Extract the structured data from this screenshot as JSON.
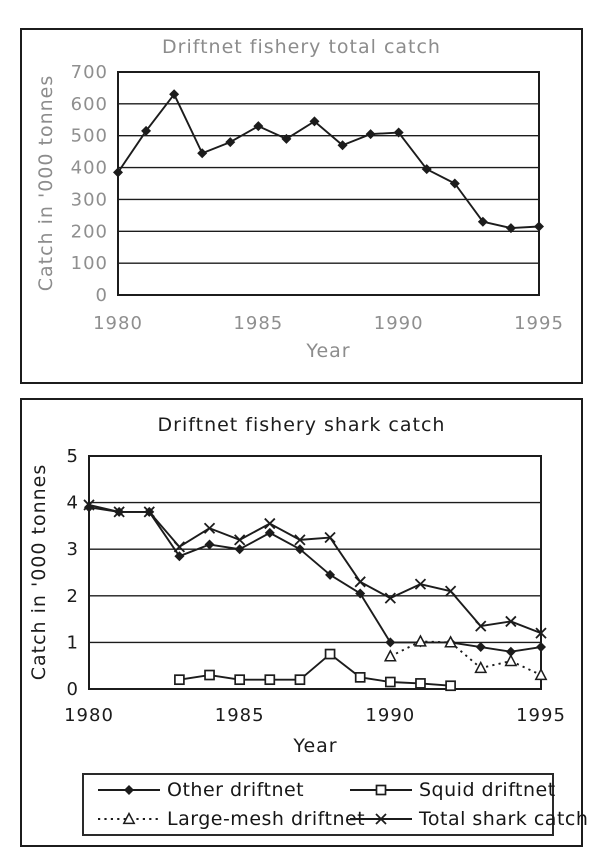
{
  "colors": {
    "background": "#ffffff",
    "ink": "#1c1c1c",
    "muted_text": "#8c8c8c"
  },
  "chart_data": [
    {
      "type": "line",
      "title": "Driftnet fishery total catch",
      "xlabel": "Year",
      "ylabel": "Catch in '000 tonnes",
      "x": [
        1980,
        1981,
        1982,
        1983,
        1984,
        1985,
        1986,
        1987,
        1988,
        1989,
        1990,
        1991,
        1992,
        1993,
        1994,
        1995
      ],
      "values": [
        385,
        515,
        630,
        445,
        480,
        530,
        490,
        545,
        470,
        505,
        510,
        395,
        350,
        230,
        210,
        215
      ],
      "marker": "diamond-filled",
      "line": "solid",
      "xticks": [
        1980,
        1985,
        1990,
        1995
      ],
      "yticks": [
        0,
        100,
        200,
        300,
        400,
        500,
        600,
        700
      ],
      "xlim": [
        1980,
        1995
      ],
      "ylim": [
        0,
        700
      ],
      "grid": true,
      "legend_position": "none"
    },
    {
      "type": "line",
      "title": "Driftnet fishery shark catch",
      "xlabel": "Year",
      "ylabel": "Catch in '000 tonnes",
      "x": [
        1980,
        1981,
        1982,
        1983,
        1984,
        1985,
        1986,
        1987,
        1988,
        1989,
        1990,
        1991,
        1992,
        1993,
        1994,
        1995
      ],
      "series": [
        {
          "name": "Other driftnet",
          "marker": "diamond-filled",
          "line": "solid",
          "values": [
            3.9,
            3.8,
            3.8,
            2.85,
            3.1,
            3.0,
            3.35,
            3.0,
            2.45,
            2.05,
            1.0,
            1.0,
            1.0,
            0.9,
            0.8,
            0.9
          ]
        },
        {
          "name": "Squid driftnet",
          "marker": "square-open",
          "line": "solid",
          "values": [
            null,
            null,
            null,
            0.2,
            0.3,
            0.2,
            0.2,
            0.2,
            0.75,
            0.25,
            0.15,
            0.12,
            0.07,
            null,
            null,
            null
          ]
        },
        {
          "name": "Large-mesh driftnet",
          "marker": "triangle-open",
          "line": "dotted",
          "values": [
            null,
            null,
            null,
            null,
            null,
            null,
            null,
            null,
            null,
            null,
            0.7,
            1.02,
            1.0,
            0.45,
            0.6,
            0.3
          ]
        },
        {
          "name": "Total shark catch",
          "marker": "x",
          "line": "solid",
          "values": [
            3.95,
            3.8,
            3.8,
            3.05,
            3.45,
            3.2,
            3.55,
            3.2,
            3.25,
            2.3,
            1.95,
            2.25,
            2.1,
            1.35,
            1.45,
            1.2
          ]
        }
      ],
      "xticks": [
        1980,
        1985,
        1990,
        1995
      ],
      "yticks": [
        0,
        1,
        2,
        3,
        4,
        5
      ],
      "xlim": [
        1980,
        1995
      ],
      "ylim": [
        0,
        5
      ],
      "grid": true,
      "legend_position": "bottom"
    }
  ]
}
